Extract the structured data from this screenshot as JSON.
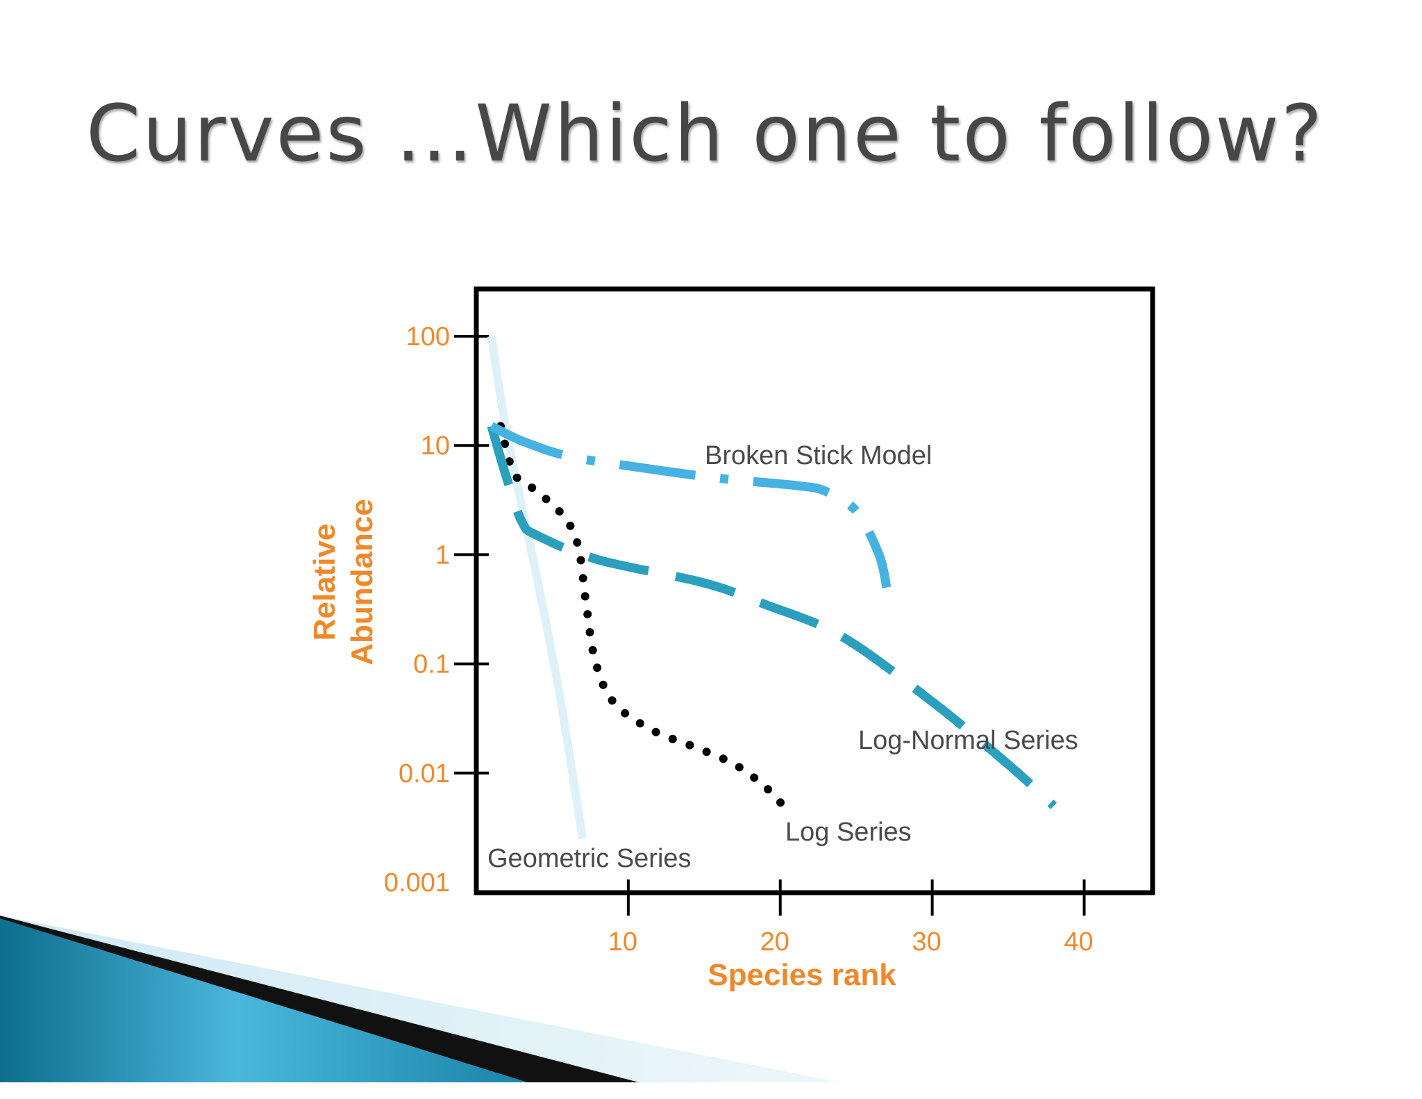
{
  "slide": {
    "title": "Curves …Which one to follow?"
  },
  "chart_data": {
    "type": "line",
    "xlabel": "Species rank",
    "ylabel": [
      "Relative",
      "Abundance"
    ],
    "y_scale": "log",
    "x_ticks": [
      10,
      20,
      30,
      40
    ],
    "x_tick_labels": [
      "10",
      "20",
      "30",
      "40"
    ],
    "y_ticks": [
      100,
      10,
      1,
      0.1,
      0.01,
      0.001
    ],
    "y_tick_labels": [
      "100",
      "10",
      "1",
      "0.1",
      "0.01",
      "0.001"
    ],
    "xlim": [
      0,
      44.5
    ],
    "ylim": [
      0.001,
      300
    ],
    "grid": false,
    "series": [
      {
        "name": "Geometric Series",
        "color": "#dff1f8",
        "style": "solid",
        "points": [
          [
            1,
            100
          ],
          [
            2,
            13
          ],
          [
            4,
            0.6
          ],
          [
            5.5,
            0.05
          ],
          [
            7,
            0.0025
          ]
        ]
      },
      {
        "name": "Log Series",
        "color": "#000000",
        "style": "dotted",
        "points": [
          [
            1.6,
            15
          ],
          [
            2.5,
            5.5
          ],
          [
            4,
            3.8
          ],
          [
            5.8,
            2.2
          ],
          [
            6.7,
            1.2
          ],
          [
            7.2,
            0.38
          ],
          [
            7.8,
            0.11
          ],
          [
            9,
            0.045
          ],
          [
            11.5,
            0.025
          ],
          [
            14.5,
            0.017
          ],
          [
            17,
            0.012
          ],
          [
            19,
            0.0075
          ],
          [
            20.5,
            0.0045
          ]
        ]
      },
      {
        "name": "Log-Normal Series",
        "color": "#2aa0be",
        "style": "dashed",
        "points": [
          [
            1,
            15
          ],
          [
            2,
            5
          ],
          [
            3,
            2
          ],
          [
            4,
            1.5
          ],
          [
            8,
            0.9
          ],
          [
            15,
            0.55
          ],
          [
            19,
            0.35
          ],
          [
            24,
            0.18
          ],
          [
            30,
            0.045
          ],
          [
            35,
            0.012
          ],
          [
            38,
            0.005
          ]
        ]
      },
      {
        "name": "Broken Stick Model",
        "color": "#45b2e2",
        "style": "dashdot",
        "points": [
          [
            1,
            15
          ],
          [
            3,
            11
          ],
          [
            6,
            8
          ],
          [
            10,
            6.5
          ],
          [
            16,
            5
          ],
          [
            21,
            4.3
          ],
          [
            23,
            3.8
          ],
          [
            25,
            2.5
          ],
          [
            26.5,
            1
          ],
          [
            27,
            0.5
          ]
        ]
      }
    ]
  }
}
